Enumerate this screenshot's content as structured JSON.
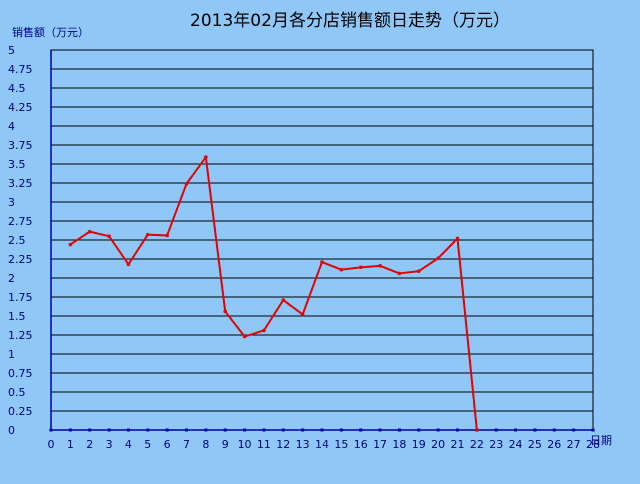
{
  "chart_data": {
    "type": "line",
    "title": "2013年02月各分店销售额日走势（万元）",
    "ylabel": "销售额（万元）",
    "xlabel": "日期",
    "xlim": [
      0,
      28
    ],
    "ylim": [
      0,
      5
    ],
    "y_ticks": [
      "0",
      "0.25",
      "0.5",
      "0.75",
      "1",
      "1.25",
      "1.5",
      "1.75",
      "2",
      "2.25",
      "2.5",
      "2.75",
      "3",
      "3.25",
      "3.5",
      "3.75",
      "4",
      "4.25",
      "4.5",
      "4.75",
      "5"
    ],
    "x_ticks": [
      "0",
      "1",
      "2",
      "3",
      "4",
      "5",
      "6",
      "7",
      "8",
      "9",
      "10",
      "11",
      "12",
      "13",
      "14",
      "15",
      "16",
      "17",
      "18",
      "19",
      "20",
      "21",
      "22",
      "23",
      "24",
      "25",
      "26",
      "27",
      "28"
    ],
    "grid": "horizontal",
    "line_color": "#e00000",
    "axis_color": "#0000a0",
    "background_color": "#8fc8f8",
    "plot_background_color": "#8fc8f8",
    "x": [
      1,
      2,
      3,
      4,
      5,
      6,
      7,
      8,
      9,
      10,
      11,
      12,
      13,
      14,
      15,
      16,
      17,
      18,
      19,
      20,
      21,
      22
    ],
    "values": [
      2.44,
      2.61,
      2.55,
      2.18,
      2.57,
      2.56,
      3.24,
      3.59,
      1.56,
      1.23,
      1.31,
      1.71,
      1.52,
      2.21,
      2.11,
      2.14,
      2.16,
      2.06,
      2.09,
      2.26,
      2.52,
      0
    ]
  }
}
